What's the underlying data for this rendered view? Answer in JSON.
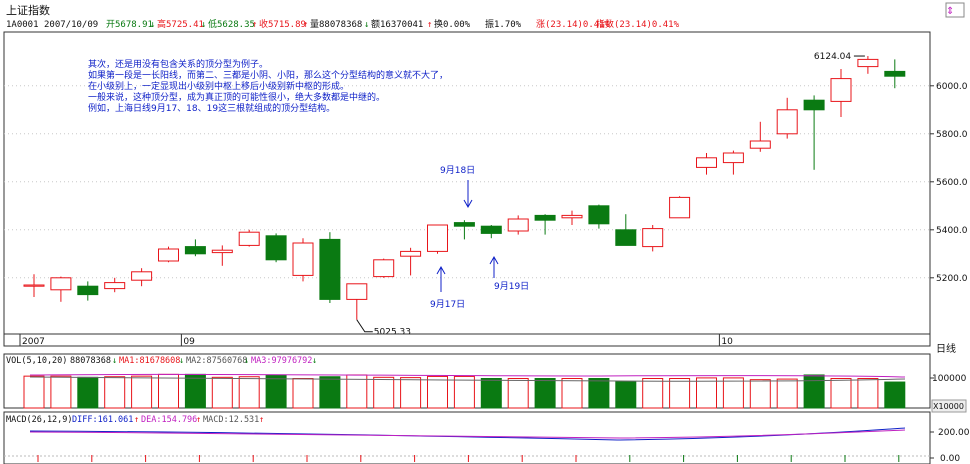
{
  "header": {
    "title": "上证指数",
    "code": "1A0001",
    "date": "2007/10/09",
    "open_label": "开5678.91",
    "high_label": "高5725.41",
    "low_label": "低5628.35",
    "close_label": "收5715.89",
    "vol_label": "量88078368",
    "amount_label": "额16370041",
    "turnover_label": "换0.00%",
    "amplitude_label": "振1.70%",
    "change_label": "涨(23.14)0.41%",
    "index_label": "指数(23.14)0.41%",
    "colors": {
      "up": "#e8141a",
      "down": "#0a7a12",
      "text": "#111111",
      "blue": "#0b2fd0"
    }
  },
  "toolbar": {
    "weekly_label": "日线"
  },
  "annotation": {
    "lines": [
      "其次，还是用没有包含关系的顶分型为例子。",
      "如果第一段是一长阳线，而第二、三都是小阴、小阳，那么这个分型结构的意义就不大了，",
      "在小级别上，一定显现出小级别中枢上移后小级别新中枢的形成。",
      "一般来说，这种顶分型，成为真正顶的可能性很小，绝大多数都是中继的。",
      "例如，上海日线9月17、18、19这三根就组成的顶分型结构。"
    ],
    "arrow_labels": {
      "sep17": "9月17日",
      "sep18": "9月18日",
      "sep19": "9月19日"
    }
  },
  "vol_panel": {
    "legend": "VOL(5,10,20)",
    "vol_value": "88078368",
    "ma1": "MA1:81678608",
    "ma2": "MA2:87560768",
    "ma3": "MA3:97976792",
    "axis_label": "100000",
    "unit_label": "X10000"
  },
  "macd_panel": {
    "legend": "MACD(26,12,9)",
    "diff": "DIFF:161.061",
    "dea": "DEA:154.796",
    "macd": "MACD:12.531",
    "axis_labels": [
      "200.00",
      "0.00"
    ]
  },
  "chart_data": {
    "type": "candlestick",
    "title": "上证指数",
    "y_ticks": [
      5200,
      5400,
      5600,
      5800,
      6000
    ],
    "y_tick_labels": [
      "5200.0",
      "5400.0",
      "5600.0",
      "5800.0",
      "6000.0"
    ],
    "ylim": [
      4970,
      6220
    ],
    "x_labels": [
      {
        "index": 0,
        "label": "2007"
      },
      {
        "index": 6,
        "label": "09"
      },
      {
        "index": 26,
        "label": "10"
      }
    ],
    "candles": [
      {
        "o": 5170,
        "h": 5215,
        "l": 5120,
        "c": 5170
      },
      {
        "o": 5150,
        "h": 5205,
        "l": 5100,
        "c": 5200
      },
      {
        "o": 5165,
        "h": 5185,
        "l": 5105,
        "c": 5130
      },
      {
        "o": 5155,
        "h": 5200,
        "l": 5140,
        "c": 5180
      },
      {
        "o": 5190,
        "h": 5240,
        "l": 5165,
        "c": 5225
      },
      {
        "o": 5270,
        "h": 5330,
        "l": 5265,
        "c": 5320
      },
      {
        "o": 5330,
        "h": 5360,
        "l": 5290,
        "c": 5300
      },
      {
        "o": 5305,
        "h": 5335,
        "l": 5250,
        "c": 5315
      },
      {
        "o": 5335,
        "h": 5400,
        "l": 5330,
        "c": 5390
      },
      {
        "o": 5375,
        "h": 5385,
        "l": 5265,
        "c": 5275
      },
      {
        "o": 5210,
        "h": 5365,
        "l": 5185,
        "c": 5345
      },
      {
        "o": 5360,
        "h": 5390,
        "l": 5095,
        "c": 5110
      },
      {
        "o": 5110,
        "h": 5175,
        "l": 5025,
        "c": 5175
      },
      {
        "o": 5205,
        "h": 5280,
        "l": 5200,
        "c": 5275
      },
      {
        "o": 5290,
        "h": 5325,
        "l": 5210,
        "c": 5310
      },
      {
        "o": 5310,
        "h": 5420,
        "l": 5300,
        "c": 5420
      },
      {
        "o": 5430,
        "h": 5440,
        "l": 5360,
        "c": 5415
      },
      {
        "o": 5415,
        "h": 5420,
        "l": 5365,
        "c": 5385
      },
      {
        "o": 5395,
        "h": 5460,
        "l": 5380,
        "c": 5445
      },
      {
        "o": 5460,
        "h": 5465,
        "l": 5380,
        "c": 5440
      },
      {
        "o": 5450,
        "h": 5480,
        "l": 5420,
        "c": 5460
      },
      {
        "o": 5500,
        "h": 5505,
        "l": 5405,
        "c": 5425
      },
      {
        "o": 5400,
        "h": 5465,
        "l": 5335,
        "c": 5335
      },
      {
        "o": 5330,
        "h": 5420,
        "l": 5310,
        "c": 5405
      },
      {
        "o": 5450,
        "h": 5540,
        "l": 5450,
        "c": 5535
      },
      {
        "o": 5660,
        "h": 5720,
        "l": 5630,
        "c": 5700
      },
      {
        "o": 5680,
        "h": 5730,
        "l": 5630,
        "c": 5720
      },
      {
        "o": 5740,
        "h": 5850,
        "l": 5725,
        "c": 5770
      },
      {
        "o": 5800,
        "h": 5950,
        "l": 5780,
        "c": 5900
      },
      {
        "o": 5940,
        "h": 5960,
        "l": 5650,
        "c": 5900
      },
      {
        "o": 5935,
        "h": 6070,
        "l": 5870,
        "c": 6030
      },
      {
        "o": 6080,
        "h": 6124.04,
        "l": 6050,
        "c": 6110
      },
      {
        "o": 6060,
        "h": 6110,
        "l": 5990,
        "c": 6040
      }
    ],
    "annotations": [
      {
        "index": 31,
        "value": 6124.04,
        "label": "6124.04"
      },
      {
        "index": 12,
        "value": 5025.33,
        "label": "5025.33"
      }
    ],
    "volume": [
      {
        "v": 108,
        "up": true
      },
      {
        "v": 108,
        "up": true
      },
      {
        "v": 104,
        "up": false
      },
      {
        "v": 106,
        "up": true
      },
      {
        "v": 108,
        "up": true
      },
      {
        "v": 114,
        "up": true
      },
      {
        "v": 114,
        "up": false
      },
      {
        "v": 104,
        "up": true
      },
      {
        "v": 106,
        "up": true
      },
      {
        "v": 112,
        "up": false
      },
      {
        "v": 100,
        "up": true
      },
      {
        "v": 106,
        "up": false
      },
      {
        "v": 112,
        "up": true
      },
      {
        "v": 104,
        "up": true
      },
      {
        "v": 103,
        "up": true
      },
      {
        "v": 107,
        "up": true
      },
      {
        "v": 107,
        "up": true
      },
      {
        "v": 100,
        "up": false
      },
      {
        "v": 100,
        "up": true
      },
      {
        "v": 100,
        "up": false
      },
      {
        "v": 100,
        "up": true
      },
      {
        "v": 100,
        "up": false
      },
      {
        "v": 90,
        "up": false
      },
      {
        "v": 100,
        "up": true
      },
      {
        "v": 100,
        "up": true
      },
      {
        "v": 102,
        "up": true
      },
      {
        "v": 102,
        "up": true
      },
      {
        "v": 96,
        "up": true
      },
      {
        "v": 98,
        "up": true
      },
      {
        "v": 112,
        "up": false
      },
      {
        "v": 100,
        "up": true
      },
      {
        "v": 100,
        "up": true
      },
      {
        "v": 88,
        "up": false
      }
    ]
  }
}
